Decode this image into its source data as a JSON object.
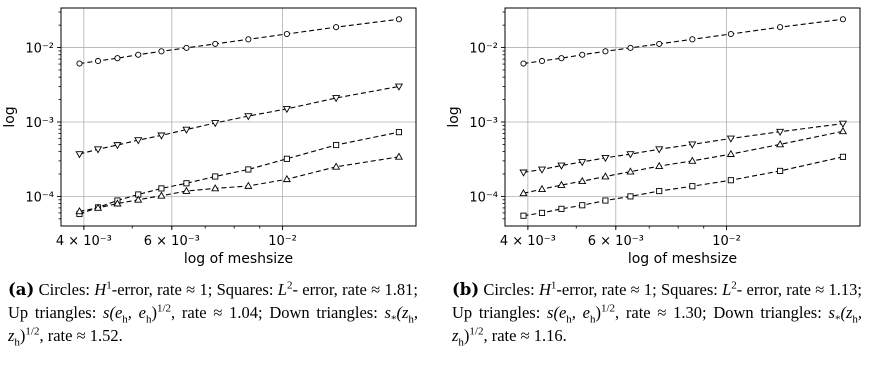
{
  "chart_data": [
    {
      "id": "a",
      "type": "line",
      "xscale": "log",
      "yscale": "log",
      "xlabel": "log of meshsize",
      "ylabel": "log",
      "xlim": [
        0.0036,
        0.0185
      ],
      "ylim": [
        4e-05,
        0.034
      ],
      "xticks": [
        {
          "value": 0.004,
          "label": "4 × 10⁻³"
        },
        {
          "value": 0.006,
          "label": "6 × 10⁻³"
        },
        {
          "value": 0.01,
          "label": "10⁻²"
        }
      ],
      "yticks": [
        {
          "value": 0.0001,
          "label": "10⁻⁴"
        },
        {
          "value": 0.001,
          "label": "10⁻³"
        },
        {
          "value": 0.01,
          "label": "10⁻²"
        }
      ],
      "grid": true,
      "x": [
        0.00392,
        0.00427,
        0.00467,
        0.00514,
        0.00572,
        0.00642,
        0.00733,
        0.00854,
        0.0102,
        0.0128,
        0.0171
      ],
      "series": [
        {
          "marker": "circle",
          "values": [
            0.0061,
            0.0066,
            0.0072,
            0.008,
            0.0089,
            0.0099,
            0.0112,
            0.0129,
            0.0152,
            0.0188,
            0.024
          ]
        },
        {
          "marker": "triangle-down",
          "values": [
            0.00037,
            0.00043,
            0.00049,
            0.00057,
            0.00066,
            0.00079,
            0.00097,
            0.0012,
            0.0015,
            0.0021,
            0.003
          ]
        },
        {
          "marker": "square",
          "values": [
            5.8e-05,
            7.1e-05,
            8.8e-05,
            0.000106,
            0.000128,
            0.00015,
            0.000185,
            0.00023,
            0.00032,
            0.00049,
            0.00073
          ]
        },
        {
          "marker": "triangle-up",
          "values": [
            6.3e-05,
            7e-05,
            8e-05,
            9e-05,
            0.000102,
            0.000118,
            0.000128,
            0.000138,
            0.00017,
            0.00025,
            0.00034
          ]
        }
      ]
    },
    {
      "id": "b",
      "type": "line",
      "xscale": "log",
      "yscale": "log",
      "xlabel": "log of meshsize",
      "ylabel": "log",
      "xlim": [
        0.0036,
        0.0185
      ],
      "ylim": [
        4e-05,
        0.034
      ],
      "xticks": [
        {
          "value": 0.004,
          "label": "4 × 10⁻³"
        },
        {
          "value": 0.006,
          "label": "6 × 10⁻³"
        },
        {
          "value": 0.01,
          "label": "10⁻²"
        }
      ],
      "yticks": [
        {
          "value": 0.0001,
          "label": "10⁻⁴"
        },
        {
          "value": 0.001,
          "label": "10⁻³"
        },
        {
          "value": 0.01,
          "label": "10⁻²"
        }
      ],
      "grid": true,
      "x": [
        0.00392,
        0.00427,
        0.00467,
        0.00514,
        0.00572,
        0.00642,
        0.00733,
        0.00854,
        0.0102,
        0.0128,
        0.0171
      ],
      "series": [
        {
          "marker": "circle",
          "values": [
            0.0061,
            0.0066,
            0.0072,
            0.008,
            0.0089,
            0.0099,
            0.0112,
            0.0129,
            0.0152,
            0.0188,
            0.024
          ]
        },
        {
          "marker": "triangle-down",
          "values": [
            0.00021,
            0.00023,
            0.00026,
            0.00029,
            0.00033,
            0.00037,
            0.00043,
            0.0005,
            0.0006,
            0.00074,
            0.00095
          ]
        },
        {
          "marker": "triangle-up",
          "values": [
            0.00011,
            0.000125,
            0.000142,
            0.00016,
            0.000185,
            0.000215,
            0.000255,
            0.0003,
            0.00037,
            0.0005,
            0.00075
          ]
        },
        {
          "marker": "square",
          "values": [
            5.5e-05,
            6e-05,
            6.8e-05,
            7.6e-05,
            8.8e-05,
            0.0001,
            0.000118,
            0.000137,
            0.000165,
            0.00022,
            0.00034
          ]
        }
      ]
    }
  ],
  "captions": [
    {
      "label": "(a)",
      "lines": [
        [
          "Circles: ",
          "H",
          "1",
          "-error, rate ≈ 1; Squares: ",
          "L",
          "2",
          "-"
        ],
        [
          "error, rate ≈ 1.81; Up triangles: ",
          "s(e",
          "h",
          ", e",
          "h",
          ")",
          "1/2",
          ","
        ],
        [
          "rate ≈ 1.04; Down triangles: ",
          "s",
          "*",
          "(z",
          "h",
          ", z",
          "h",
          ")",
          "1/2",
          ", rate"
        ],
        [
          "≈ 1.52."
        ]
      ]
    },
    {
      "label": "(b)",
      "lines": [
        [
          "Circles: ",
          "H",
          "1",
          "-error, rate ≈ 1; Squares: ",
          "L",
          "2",
          "-"
        ],
        [
          "error, rate ≈ 1.13; Up triangles: ",
          "s(e",
          "h",
          ", e",
          "h",
          ")",
          "1/2",
          ","
        ],
        [
          "rate ≈ 1.30; Down triangles: ",
          "s",
          "*",
          "(z",
          "h",
          ", z",
          "h",
          ")",
          "1/2",
          ", rate"
        ],
        [
          "≈ 1.16."
        ]
      ]
    }
  ]
}
